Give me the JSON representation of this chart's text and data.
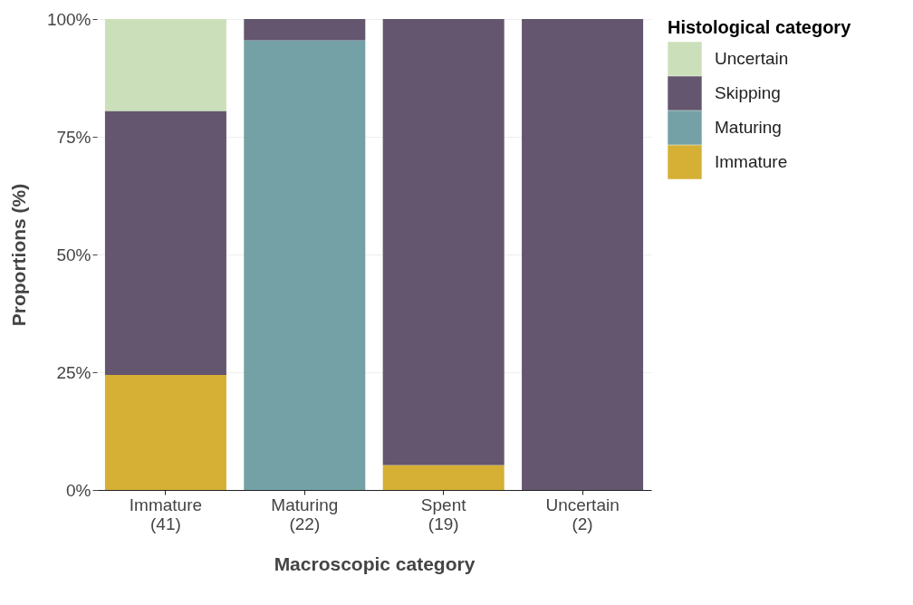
{
  "chart_data": {
    "type": "bar",
    "stacked": true,
    "xlabel": "Macroscopic category",
    "ylabel": "Proportions (%)",
    "legend_title": "Histological category",
    "legend": "right",
    "grid": "y",
    "categories": [
      "Immature\n(41)",
      "Maturing\n(22)",
      "Spent\n(19)",
      "Uncertain\n(2)"
    ],
    "ylim": [
      0,
      100
    ],
    "yticks": [
      {
        "value": 0,
        "label": "0%"
      },
      {
        "value": 25,
        "label": "25%"
      },
      {
        "value": 50,
        "label": "50%"
      },
      {
        "value": 75,
        "label": "75%"
      },
      {
        "value": 100,
        "label": "100%"
      }
    ],
    "series": [
      {
        "name": "Immature",
        "color": "#d4ad2e",
        "values": [
          24.4,
          0,
          5.3,
          0
        ]
      },
      {
        "name": "Maturing",
        "color": "#6e9ea2",
        "values": [
          0,
          95.5,
          0,
          0
        ]
      },
      {
        "name": "Skipping",
        "color": "#5e5169",
        "values": [
          56.1,
          4.5,
          94.7,
          100
        ]
      },
      {
        "name": "Uncertain",
        "color": "#c9dfb8",
        "values": [
          19.5,
          0,
          0,
          0
        ]
      }
    ]
  }
}
